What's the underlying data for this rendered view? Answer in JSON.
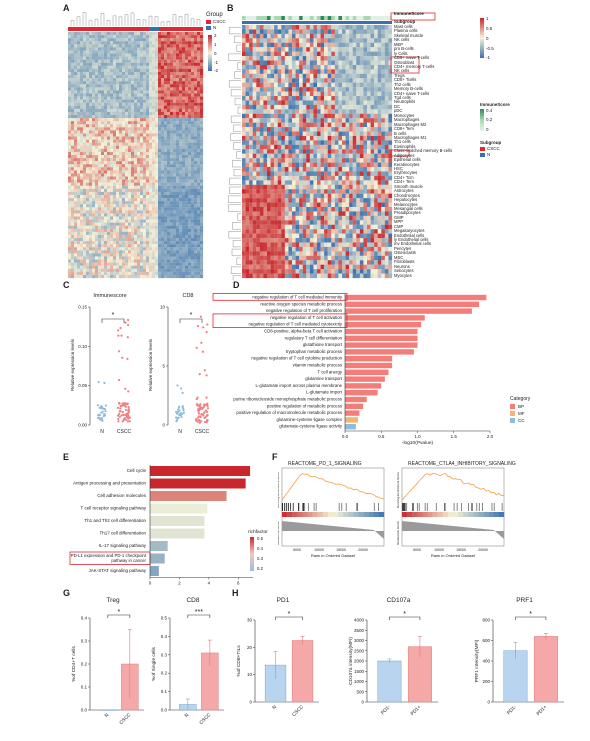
{
  "labels": {
    "A": "A",
    "B": "B",
    "C": "C",
    "D": "D",
    "E": "E",
    "F": "F",
    "G": "G",
    "H": "H"
  },
  "colors": {
    "cscc": "#e3262d",
    "n": "#3a6fb6",
    "heat_hi": "#c8282d",
    "heat_mid": "#f5f3d8",
    "heat_lo": "#3b72b0",
    "bar_red": "#f08080",
    "bp": "#f47d7a",
    "mf": "#f7b36b",
    "cc": "#8fbcd9",
    "pink": "#f4a9a8",
    "blue": "#b9d4ee"
  },
  "panelA": {
    "legend_title": "Group",
    "legend_items": [
      "CSCC",
      "N"
    ],
    "scale": [
      "2",
      "1",
      "0",
      "-1",
      "-2"
    ]
  },
  "panelB": {
    "top_label": "ImmuneScore",
    "sub_label": "Subgroup",
    "rows": [
      "Mast cells",
      "Plasma cells",
      "Skeletal muscle",
      "NK cells",
      "MEP",
      "pro B-cells",
      "ly Cells",
      "CD8+ naive T-cells",
      "Osteoblast",
      "CD4+ memory T-cells",
      "NK cells",
      "Tregs",
      "CD8+ Tcells",
      "Th2 cells",
      "Memory B-cells",
      "CD4+ naive T-cells",
      "Tgd cells",
      "Neutrophils",
      "DC",
      "pDC",
      "Monocytes",
      "Macrophages",
      "Macrophages M2",
      "CD8+ Tem",
      "B cells",
      "Macrophages M1",
      "Th1 cells",
      "Eosinophils",
      "Class-switched memory B-cells",
      "Adipocytes",
      "Epithelial cells",
      "Keratinocytes",
      "HSC",
      "Erythrocytes",
      "CD4+ Tcm",
      "CD4+ Tem",
      "Smooth muscle",
      "Astrocytes",
      "Chondrocytes",
      "Hepatocytes",
      "Melanocytes",
      "Mesangial cells",
      "Preadipocytes",
      "GMP",
      "MPP",
      "CMP",
      "Megakaryocytes",
      "Endothelial cells",
      "ly Endothelial cells",
      "mv Endothelial cells",
      "Pericytes",
      "Osteoclasts",
      "MSC",
      "Fibroblasts",
      "Neurons",
      "Sebocytes",
      "Myocytes"
    ],
    "legend_immune": {
      "title": "ImmuneScore",
      "ticks": [
        "0.4",
        "0.2",
        "0"
      ]
    },
    "legend_subgroup": {
      "title": "Subgroup",
      "items": [
        "CSCC",
        "N"
      ]
    },
    "scale": [
      "1",
      "0.5",
      "0",
      "-0.5",
      "-1"
    ]
  },
  "panelC": {
    "plots": [
      {
        "title": "Immunescore",
        "ylabel": "Relative expression levels",
        "yticks": [
          "0.15",
          "0.10",
          "0.05",
          "0.00"
        ],
        "cats": [
          "N",
          "CSCC"
        ],
        "sig": "*"
      },
      {
        "title": "CD8",
        "ylabel": "Relative expression levels",
        "yticks": [
          "10",
          "5",
          "0"
        ],
        "cats": [
          "N",
          "CSCC"
        ],
        "sig": "*"
      }
    ]
  },
  "chart_data": [
    {
      "type": "bar",
      "panel": "D",
      "categories": [
        "negative regulation of T cell mediated immunity",
        "reactive oxygen species metabolic process",
        "negative regulation of T cell proliferation",
        "negative regulation of T cell activation",
        "negative regulation of T cell mediated cytotoxicity",
        "CD8-positive, alpha-beta T cell activation",
        "regulatory T cell differentiation",
        "glutathione transport",
        "tryptophan metabolic process",
        "negative regulation of T cell cytokine production",
        "vitamin metabolic process",
        "T cell anergy",
        "glutamine transport",
        "L-glutamate import across plasma membrane",
        "L-glutamate import",
        "purine ribonucleoside monophosphate metabolic process",
        "positive regulation of metabolic process",
        "positive regulation of macromolecule metabolic process",
        "glutamine-cysteine ligase complex",
        "glutamate-cysteine ligase activity"
      ],
      "values": [
        1.95,
        1.85,
        1.75,
        1.1,
        1.05,
        1.0,
        1.0,
        1.0,
        0.95,
        0.65,
        0.65,
        0.6,
        0.55,
        0.5,
        0.45,
        0.3,
        0.25,
        0.2,
        0.18,
        0.15
      ],
      "category_type": [
        "BP",
        "BP",
        "BP",
        "BP",
        "BP",
        "BP",
        "BP",
        "BP",
        "BP",
        "BP",
        "BP",
        "BP",
        "BP",
        "BP",
        "BP",
        "BP",
        "BP",
        "BP",
        "MF",
        "CC"
      ],
      "xlabel": "-log10(Pvalue)",
      "xticks": [
        "0.0",
        "0.5",
        "1.0",
        "1.5",
        "2.0"
      ],
      "xlim": [
        0,
        2.0
      ],
      "legend_title": "Category",
      "legend": [
        "BP",
        "MF",
        "CC"
      ],
      "highlighted": [
        0,
        3,
        4
      ]
    },
    {
      "type": "bar",
      "panel": "E",
      "categories": [
        "Cell cycle",
        "Antigen processing and presentation",
        "Cell adhesion molecules",
        "T cell receptor signaling pathway",
        "Th1 and Th2 cell differentiation",
        "Th17 cell differentiation",
        "IL-17 signaling pathway",
        "PD-L1 expression and PD-1 checkpoint pathway in cancer",
        "JAK-STAT signaling pathway"
      ],
      "values": [
        6.8,
        6.5,
        5.2,
        3.9,
        3.7,
        3.7,
        1.2,
        1.0,
        0.6
      ],
      "richfactor": [
        0.52,
        0.5,
        0.42,
        0.32,
        0.3,
        0.3,
        0.2,
        0.18,
        0.15
      ],
      "xlabel": "-log10(Pvalue)",
      "xticks": [
        "0",
        "2",
        "4",
        "6"
      ],
      "xlim": [
        0,
        7
      ],
      "legend_title": "richfactor",
      "legend": [
        "0.5",
        "0.4",
        "0.3",
        "0.2"
      ],
      "highlighted": [
        7
      ]
    },
    {
      "type": "line",
      "panel": "F",
      "plots": [
        {
          "title": "REACTOME_PD_1_SIGNALING",
          "ylabel": "Running Enrichment Score",
          "ylabel2": "Ranked list metric",
          "xlabel": "Rank in Ordered Dataset",
          "xticks": [
            "5000",
            "10000",
            "15000",
            "20000"
          ]
        },
        {
          "title": "REACTOME_CTLA4_INHIBITORY_SIGNALING",
          "ylabel": "Running Enrichment Score",
          "ylabel2": "Ranked list metric",
          "xlabel": "Rank in Ordered Dataset",
          "xticks": [
            "5000",
            "10000",
            "15000",
            "20000"
          ]
        }
      ]
    },
    {
      "type": "bar",
      "panel": "G",
      "plots": [
        {
          "title": "Treg",
          "ylabel": "%of CD4+T cells",
          "categories": [
            "N",
            "CSCC"
          ],
          "values": [
            0.0,
            0.2
          ],
          "err": [
            0.0,
            0.15
          ],
          "yticks": [
            "0.4",
            "0.3",
            "0.2",
            "0.1",
            "0.0"
          ],
          "ylim": [
            0,
            0.4
          ],
          "sig": "*"
        },
        {
          "title": "CD8",
          "ylabel": "%of Single cells",
          "categories": [
            "N",
            "CSCC"
          ],
          "values": [
            0.03,
            0.31
          ],
          "err": [
            0.03,
            0.07
          ],
          "yticks": [
            "0.5",
            "0.4",
            "0.3",
            "0.2",
            "0.1",
            "0.0"
          ],
          "ylim": [
            0,
            0.5
          ],
          "sig": "***"
        }
      ]
    },
    {
      "type": "bar",
      "panel": "H",
      "plots": [
        {
          "title": "PD1",
          "ylabel": "%of CD8+TILs",
          "categories": [
            "N",
            "CSCC"
          ],
          "values": [
            13.5,
            22.5
          ],
          "err": [
            5,
            1.5
          ],
          "yticks": [
            "30",
            "20",
            "10",
            "0"
          ],
          "ylim": [
            0,
            30
          ],
          "sig": "*"
        },
        {
          "title": "CD107a",
          "ylabel": "CD107a intensity(MFI)",
          "categories": [
            "PD1-",
            "PD1+"
          ],
          "values": [
            2000,
            2700
          ],
          "err": [
            100,
            500
          ],
          "yticks": [
            "4000",
            "3500",
            "3000",
            "2500",
            "2000",
            "1500",
            "1000",
            "500",
            "0"
          ],
          "ylim": [
            0,
            4000
          ],
          "sig": "*"
        },
        {
          "title": "PRF1",
          "ylabel": "PRF1 intensity(MFI)",
          "categories": [
            "PD1-",
            "PD1+"
          ],
          "values": [
            500,
            640
          ],
          "err": [
            80,
            30
          ],
          "yticks": [
            "800",
            "600",
            "400",
            "200",
            "0"
          ],
          "ylim": [
            0,
            800
          ],
          "sig": "*"
        }
      ]
    }
  ]
}
